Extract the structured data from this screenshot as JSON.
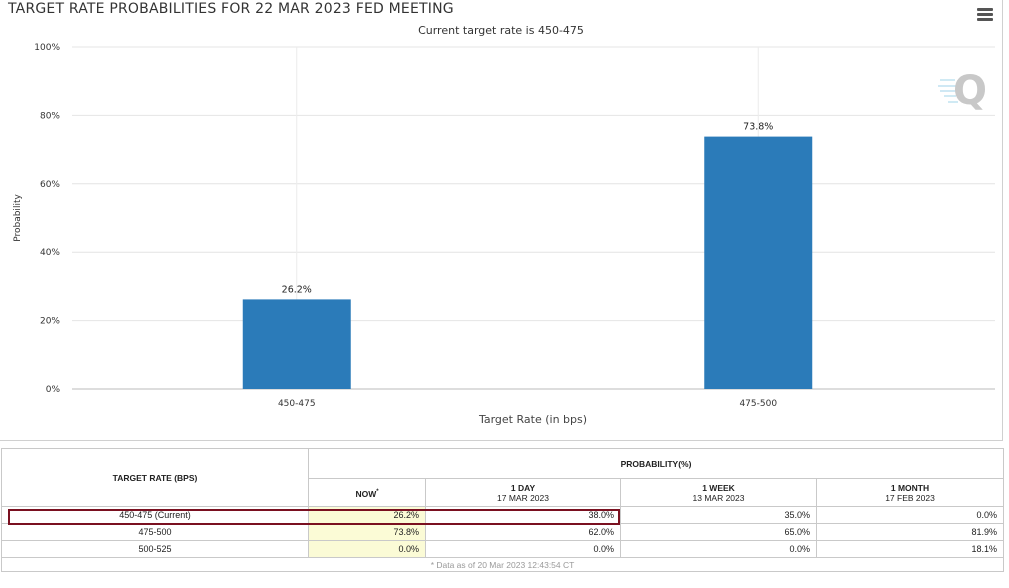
{
  "header": {
    "title": "TARGET RATE PROBABILITIES FOR 22 MAR 2023 FED MEETING",
    "subtitle": "Current target rate is 450-475",
    "menu_icon": "hamburger-menu-icon",
    "watermark_icon": "cme-q-logo"
  },
  "chart_data": {
    "type": "bar",
    "categories": [
      "450-475",
      "475-500"
    ],
    "values": [
      26.2,
      73.8
    ],
    "data_labels": [
      "26.2%",
      "73.8%"
    ],
    "xlabel": "Target Rate (in bps)",
    "ylabel": "Probability",
    "ylim": [
      0,
      100
    ],
    "yticks": [
      "0%",
      "20%",
      "40%",
      "60%",
      "80%",
      "100%"
    ],
    "grid": true,
    "bar_color": "#2b7bb9"
  },
  "table": {
    "rate_header": "TARGET RATE (BPS)",
    "prob_header": "PROBABILITY(%)",
    "columns": [
      {
        "line1": "NOW",
        "line2": "",
        "marker": "*"
      },
      {
        "line1": "1 DAY",
        "line2": "17 MAR 2023",
        "marker": ""
      },
      {
        "line1": "1 WEEK",
        "line2": "13 MAR 2023",
        "marker": ""
      },
      {
        "line1": "1 MONTH",
        "line2": "17 FEB 2023",
        "marker": ""
      }
    ],
    "rows": [
      {
        "rate": "450-475 (Current)",
        "values": [
          "26.2%",
          "38.0%",
          "35.0%",
          "0.0%"
        ]
      },
      {
        "rate": "475-500",
        "values": [
          "73.8%",
          "62.0%",
          "65.0%",
          "81.9%"
        ]
      },
      {
        "rate": "500-525",
        "values": [
          "0.0%",
          "0.0%",
          "0.0%",
          "18.1%"
        ]
      }
    ],
    "footnote": "* Data as of 20 Mar 2023 12:43:54 CT"
  }
}
